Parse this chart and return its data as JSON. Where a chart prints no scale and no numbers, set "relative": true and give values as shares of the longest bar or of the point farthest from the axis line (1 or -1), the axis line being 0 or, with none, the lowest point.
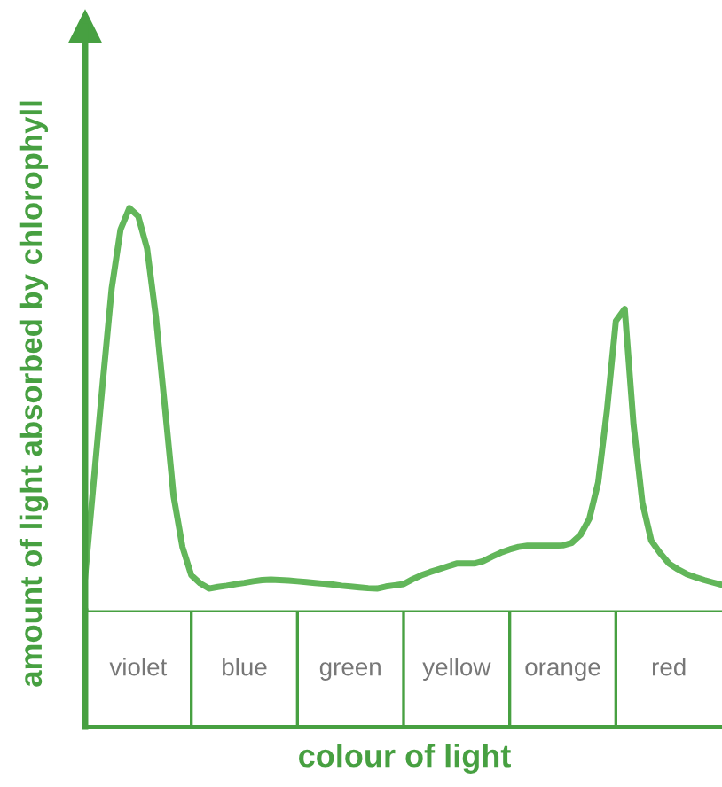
{
  "chart_data": [
    {
      "type": "line",
      "relative": true,
      "xlabel": "colour of light",
      "ylabel": "amount of light absorbed by chlorophyll",
      "categories": [
        null,
        null,
        null,
        null,
        null,
        null,
        null,
        null,
        null,
        null,
        null,
        null,
        null,
        null,
        null,
        null,
        null,
        null,
        null,
        null,
        null,
        null,
        null,
        null,
        null,
        null,
        null,
        null,
        null,
        null,
        null,
        null,
        null,
        null,
        null,
        null,
        null,
        null,
        null,
        null,
        null,
        null,
        null,
        null,
        null,
        null,
        null,
        null,
        null,
        null,
        null,
        null,
        null,
        null,
        null,
        null,
        null,
        null,
        null,
        null,
        null,
        null,
        null,
        null,
        null,
        null,
        null,
        null,
        null,
        null,
        null,
        null,
        null
      ],
      "series": [
        {
          "color": "#62b65a",
          "values": [
            0.088,
            0.33,
            0.57,
            0.8,
            0.947,
            1,
            0.98,
            0.9,
            0.73,
            0.51,
            0.286,
            0.16,
            0.09,
            0.07,
            0.057,
            0.061,
            0.064,
            0.068,
            0.071,
            0.075,
            0.078,
            0.079,
            0.078,
            0.077,
            0.075,
            0.073,
            0.071,
            0.069,
            0.067,
            0.064,
            0.062,
            0.06,
            0.058,
            0.057,
            0.062,
            0.065,
            0.068,
            0.08,
            0.09,
            0.098,
            0.105,
            0.112,
            0.119,
            0.119,
            0.119,
            0.125,
            0.136,
            0.146,
            0.154,
            0.16,
            0.163,
            0.163,
            0.163,
            0.163,
            0.164,
            0.17,
            0.19,
            0.23,
            0.32,
            0.5,
            0.72,
            0.75,
            0.463,
            0.27,
            0.176,
            0.145,
            0.119,
            0.105,
            0.093,
            0.085,
            0.078,
            0.072,
            0.066
          ]
        }
      ]
    },
    {
      "type": "other",
      "annotations": [
        "violet",
        "blue",
        "green",
        "yellow",
        "orange",
        "red"
      ]
    }
  ]
}
